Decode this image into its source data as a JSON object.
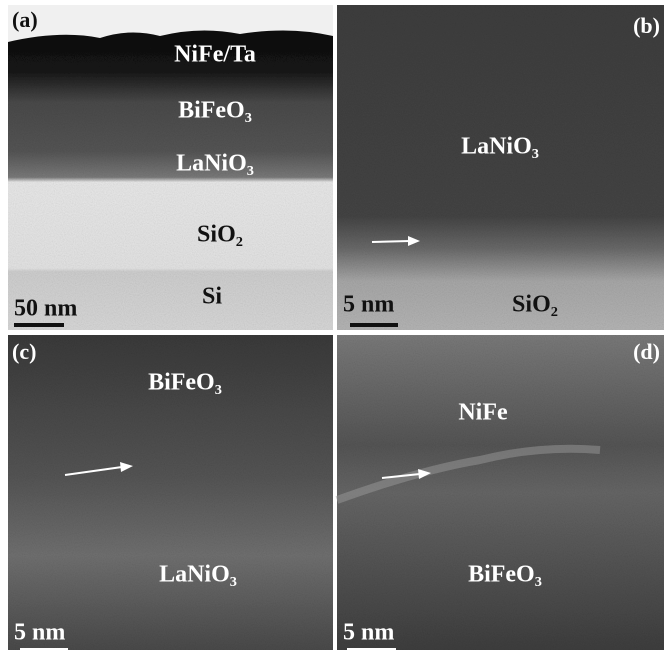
{
  "panels": [
    {
      "label": "(a)",
      "layers": [
        "NiFe/Ta",
        "BiFeO₃",
        "LaNiO₃",
        "SiO₂",
        "Si"
      ],
      "scale_bar": "50 nm"
    },
    {
      "label": "(b)",
      "layers": [
        "LaNiO₃",
        "SiO₂"
      ],
      "scale_bar": "5 nm"
    },
    {
      "label": "(c)",
      "layers": [
        "BiFeO₃",
        "LaNiO₃"
      ],
      "scale_bar": "5 nm"
    },
    {
      "label": "(d)",
      "layers": [
        "NiFe",
        "BiFeO₃"
      ],
      "scale_bar": "5 nm"
    }
  ]
}
